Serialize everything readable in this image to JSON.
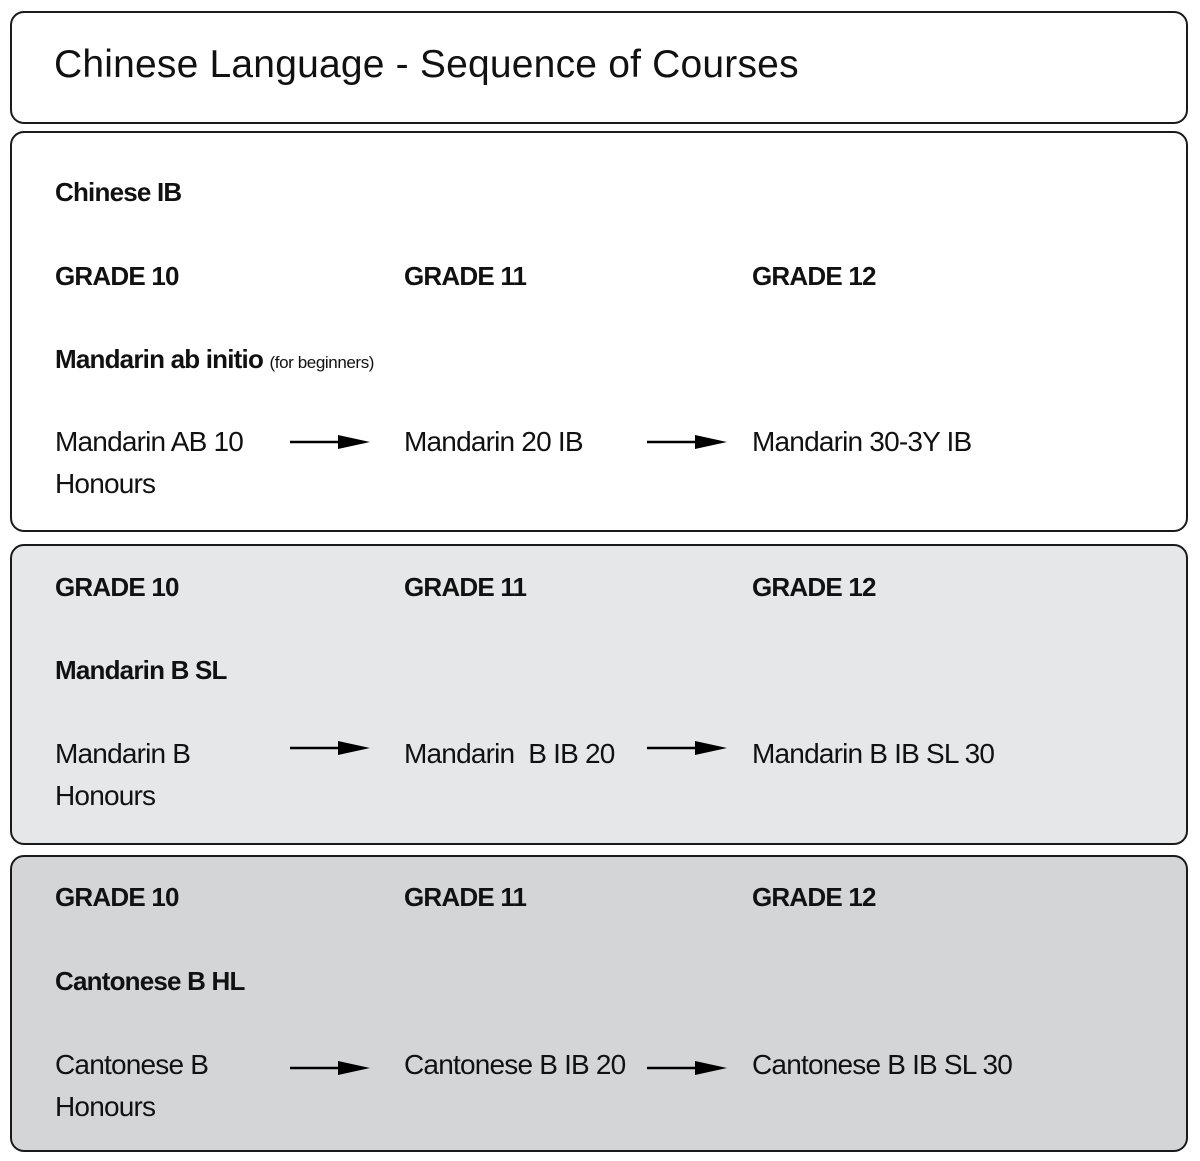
{
  "title": "Chinese Language - Sequence of Courses",
  "colors": {
    "panel1": "#ffffff",
    "panel2": "#e6e7e9",
    "panel3": "#d4d5d7",
    "border": "#1a1a1a"
  },
  "panels": [
    {
      "heading": "Chinese IB",
      "grades": [
        "GRADE 10",
        "GRADE 11",
        "GRADE 12"
      ],
      "program": "Mandarin ab initio",
      "program_note": "(for beginners)",
      "courses": [
        "Mandarin AB 10",
        "Honours",
        "Mandarin 20 IB",
        "Mandarin 30-3Y IB"
      ]
    },
    {
      "grades": [
        "GRADE 10",
        "GRADE 11",
        "GRADE 12"
      ],
      "program": "Mandarin B SL",
      "courses": [
        "Mandarin B",
        "Honours",
        "Mandarin  B IB 20",
        "Mandarin B IB SL 30"
      ]
    },
    {
      "grades": [
        "GRADE 10",
        "GRADE 11",
        "GRADE 12"
      ],
      "program": "Cantonese B HL",
      "courses": [
        "Cantonese B",
        "Honours",
        "Cantonese B IB 20",
        "Cantonese B IB SL 30"
      ]
    }
  ],
  "icons": {
    "arrow": "arrow-right-icon"
  }
}
